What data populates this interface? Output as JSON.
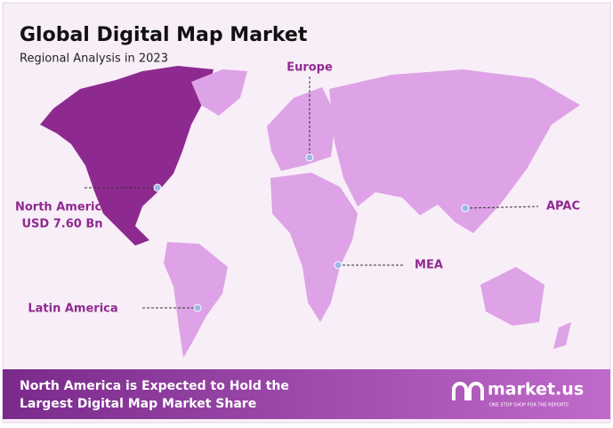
{
  "header": {
    "title": "Global Digital Map Market",
    "subtitle": "Regional Analysis in 2023"
  },
  "regions": [
    {
      "name": "Europe"
    },
    {
      "name": "North America",
      "value": "USD 7.60 Bn"
    },
    {
      "name": "APAC"
    },
    {
      "name": "MEA"
    },
    {
      "name": "Latin America"
    }
  ],
  "footer": {
    "lines": [
      "North America is Expected to Hold the",
      "Largest Digital Map Market Share"
    ],
    "logo": "market.us",
    "tagline": "ONE STOP SHOP FOR THE REPORTS"
  }
}
